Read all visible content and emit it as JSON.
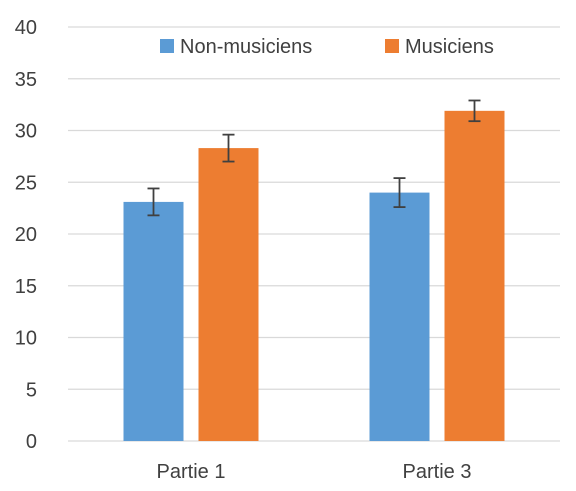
{
  "chart_data": {
    "type": "bar",
    "categories": [
      "Partie 1",
      "Partie 3"
    ],
    "series": [
      {
        "name": "Non-musiciens",
        "values": [
          23.1,
          24.0
        ],
        "error": [
          1.3,
          1.4
        ],
        "color": "#5b9bd5"
      },
      {
        "name": "Musiciens",
        "values": [
          28.3,
          31.9
        ],
        "error": [
          1.3,
          1.0
        ],
        "color": "#ed7d31"
      }
    ],
    "ylim": [
      0,
      40
    ],
    "yticks": [
      0,
      5,
      10,
      15,
      20,
      25,
      30,
      35,
      40
    ],
    "grid": true,
    "legend_position": "top",
    "title": "",
    "xlabel": "",
    "ylabel": ""
  },
  "colors": {
    "grid": "#d9d9d9",
    "axis_text": "#404040",
    "error_bar": "#404040"
  }
}
